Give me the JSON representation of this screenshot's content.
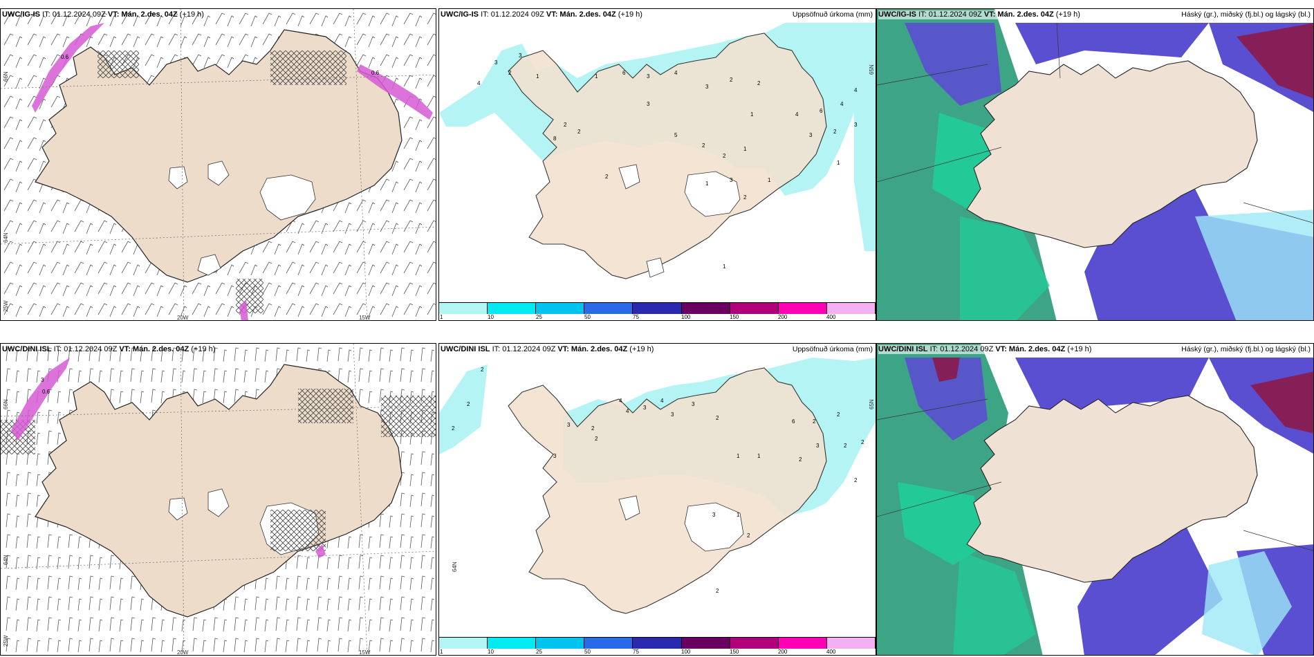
{
  "panels": {
    "p1": {
      "model": "UWC/IG-IS",
      "it": "IT: 01.12.2024 09Z",
      "vt": "VT: Mán. 2.des. 04Z",
      "lead": "(+19 h)"
    },
    "p2": {
      "model": "UWC/IG-IS",
      "it": "IT: 01.12.2024 09Z",
      "vt": "VT: Mán. 2.des. 04Z",
      "lead": "(+19 h)",
      "right_title": "Uppsöfnuð úrkoma (mm)"
    },
    "p3": {
      "model": "UWC/IG-IS",
      "it": "IT: 01.12.2024 09Z",
      "vt": "VT: Mán. 2.des. 04Z",
      "lead": "(+19 h)",
      "right_title": "Háský (gr.), miðský (fj.bl.) og lágský (bl.)"
    },
    "p4": {
      "model": "UWC/DINI ISL",
      "it": "IT: 01.12.2024 09Z",
      "vt": "VT: Mán. 2.des. 04Z",
      "lead": "(+19 h)"
    },
    "p5": {
      "model": "UWC/DINI ISL",
      "it": "IT: 01.12.2024 09Z",
      "vt": "VT: Mán. 2.des. 04Z",
      "lead": "(+19 h)",
      "right_title": "Uppsöfnuð úrkoma (mm)"
    },
    "p6": {
      "model": "UWC/DINI ISL",
      "it": "IT: 01.12.2024 09Z",
      "vt": "VT: Mán. 2.des. 04Z",
      "lead": "(+19 h)",
      "right_title": "Háský (gr.), miðský (fj.bl.) og lágský (bl.)"
    }
  },
  "axes": {
    "lat66": "66N",
    "lat64": "64N",
    "lat_25w": "25W",
    "lon20": "20W",
    "lon15": "15W",
    "lat65": "65N"
  },
  "colorbar": {
    "labels": [
      "1",
      "10",
      "25",
      "50",
      "75",
      "100",
      "150",
      "200",
      "400"
    ],
    "colors": [
      "#b3f5f5",
      "#00eaf0",
      "#00c4ee",
      "#2a6ae8",
      "#2a2ab0",
      "#6a0060",
      "#b0007a",
      "#ff00b4",
      "#f3b0f3"
    ]
  },
  "colors": {
    "land": "#f2e2d0",
    "precip_light": "#b4f4f4",
    "sea_green": "#3da586",
    "cloud_high": "#5a4fd0",
    "cloud_mid": "#1fcf9a",
    "cloud_low": "#9de7f7",
    "snow_magenta": "#d55ad5"
  },
  "precip_labels_top": [
    "4",
    "3",
    "2",
    "3",
    "1",
    "2",
    "1",
    "6",
    "3",
    "4",
    "3",
    "2",
    "2",
    "3",
    "1",
    "5",
    "2",
    "2",
    "1",
    "4",
    "3",
    "6",
    "4",
    "2",
    "1",
    "3",
    "4",
    "8",
    "2",
    "2",
    "3",
    "1",
    "1",
    "2",
    "1"
  ],
  "precip_labels_bottom": [
    "2",
    "2",
    "2",
    "3",
    "2",
    "4",
    "4",
    "3",
    "4",
    "3",
    "3",
    "2",
    "2",
    "6",
    "2",
    "2",
    "3",
    "1",
    "1",
    "2",
    "3",
    "2",
    "2",
    "2",
    "3",
    "1",
    "2",
    "2"
  ],
  "snow_labels": [
    "0.6",
    "0.6",
    "3",
    "0.6"
  ]
}
